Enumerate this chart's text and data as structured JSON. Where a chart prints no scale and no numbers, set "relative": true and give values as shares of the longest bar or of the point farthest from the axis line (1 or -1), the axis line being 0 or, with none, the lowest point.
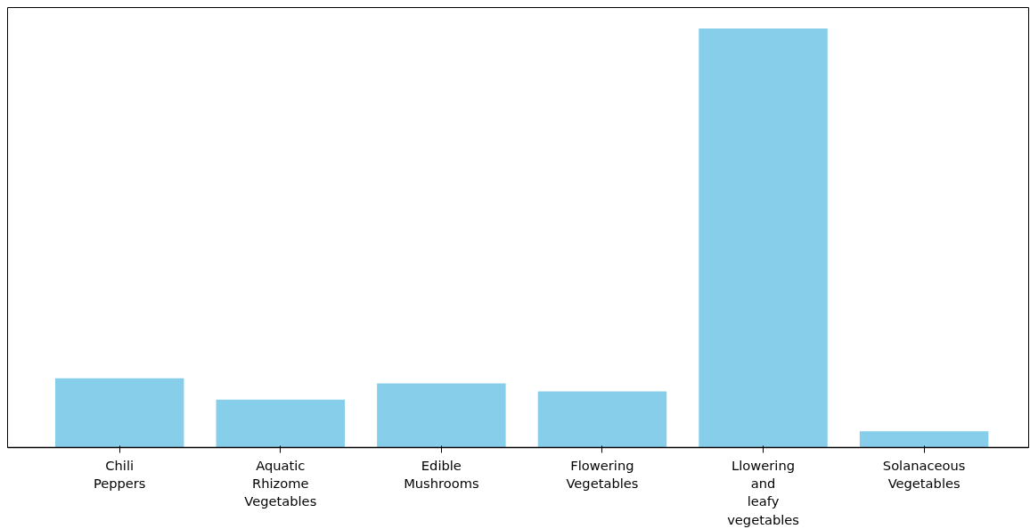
{
  "chart_data": {
    "type": "bar",
    "relative": true,
    "color": "#87ceeb",
    "categories": [
      "Chili Peppers",
      "Aquatic Rhizome Vegetables",
      "Edible Mushrooms",
      "Flowering Vegetables",
      "Llowering and leafy vegetables",
      "Solanaceous Vegetables"
    ],
    "values": [
      0.165,
      0.114,
      0.153,
      0.134,
      1.0,
      0.039
    ]
  }
}
